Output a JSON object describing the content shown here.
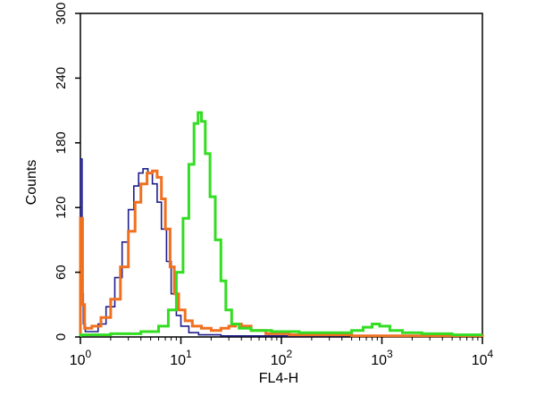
{
  "chart_data": {
    "type": "line",
    "xlabel": "FL4-H",
    "ylabel": "Counts",
    "xscale": "log",
    "xlim": [
      1,
      10000
    ],
    "ylim": [
      0,
      300
    ],
    "y_ticks": [
      0,
      60,
      120,
      180,
      240,
      300
    ],
    "x_ticks": [
      {
        "value": 1,
        "base": "10",
        "exp": "0"
      },
      {
        "value": 10,
        "base": "10",
        "exp": "1"
      },
      {
        "value": 100,
        "base": "10",
        "exp": "2"
      },
      {
        "value": 1000,
        "base": "10",
        "exp": "3"
      },
      {
        "value": 10000,
        "base": "10",
        "exp": "4"
      }
    ],
    "grid": false,
    "legend": "none",
    "series": [
      {
        "color": "#1f1f8a",
        "points": [
          [
            1.0,
            165
          ],
          [
            1.02,
            165
          ],
          [
            1.04,
            40
          ],
          [
            1.07,
            12
          ],
          [
            1.12,
            5
          ],
          [
            1.25,
            5
          ],
          [
            1.5,
            12
          ],
          [
            1.8,
            28
          ],
          [
            2.2,
            55
          ],
          [
            2.6,
            88
          ],
          [
            3.0,
            118
          ],
          [
            3.4,
            140
          ],
          [
            3.8,
            152
          ],
          [
            4.2,
            156
          ],
          [
            4.7,
            152
          ],
          [
            5.2,
            142
          ],
          [
            5.8,
            125
          ],
          [
            6.4,
            100
          ],
          [
            7.2,
            70
          ],
          [
            8.0,
            40
          ],
          [
            9.0,
            20
          ],
          [
            10.0,
            10
          ],
          [
            12.0,
            4
          ],
          [
            15.0,
            2
          ],
          [
            25.0,
            1
          ],
          [
            10000,
            0
          ]
        ]
      },
      {
        "color": "#f07020",
        "points": [
          [
            1.0,
            110
          ],
          [
            1.02,
            110
          ],
          [
            1.05,
            30
          ],
          [
            1.1,
            8
          ],
          [
            1.3,
            10
          ],
          [
            1.6,
            18
          ],
          [
            2.0,
            35
          ],
          [
            2.5,
            65
          ],
          [
            3.0,
            98
          ],
          [
            3.5,
            125
          ],
          [
            4.0,
            142
          ],
          [
            4.6,
            152
          ],
          [
            5.2,
            154
          ],
          [
            5.8,
            148
          ],
          [
            6.4,
            128
          ],
          [
            7.0,
            100
          ],
          [
            7.8,
            65
          ],
          [
            8.6,
            40
          ],
          [
            9.5,
            25
          ],
          [
            11.0,
            15
          ],
          [
            13.0,
            10
          ],
          [
            16.0,
            8
          ],
          [
            20.0,
            6
          ],
          [
            25.0,
            8
          ],
          [
            30.0,
            10
          ],
          [
            35.0,
            12
          ],
          [
            40.0,
            10
          ],
          [
            50.0,
            6
          ],
          [
            70.0,
            3
          ],
          [
            120.0,
            2
          ],
          [
            500.0,
            1
          ],
          [
            10000,
            0
          ]
        ]
      },
      {
        "color": "#33dd22",
        "points": [
          [
            1.0,
            2
          ],
          [
            2.0,
            3
          ],
          [
            4.0,
            5
          ],
          [
            6.0,
            10
          ],
          [
            7.5,
            25
          ],
          [
            9.0,
            60
          ],
          [
            10.5,
            110
          ],
          [
            12.0,
            160
          ],
          [
            13.5,
            198
          ],
          [
            14.8,
            208
          ],
          [
            16.0,
            200
          ],
          [
            17.5,
            170
          ],
          [
            19.5,
            130
          ],
          [
            22.0,
            90
          ],
          [
            25.0,
            52
          ],
          [
            28.0,
            25
          ],
          [
            32.0,
            12
          ],
          [
            38.0,
            8
          ],
          [
            50.0,
            6
          ],
          [
            80.0,
            5
          ],
          [
            150.0,
            4
          ],
          [
            300.0,
            4
          ],
          [
            500.0,
            6
          ],
          [
            650.0,
            9
          ],
          [
            800.0,
            12
          ],
          [
            950.0,
            10
          ],
          [
            1200.0,
            6
          ],
          [
            1600.0,
            4
          ],
          [
            2500.0,
            3
          ],
          [
            5000.0,
            2
          ],
          [
            10000,
            2
          ]
        ]
      }
    ]
  }
}
